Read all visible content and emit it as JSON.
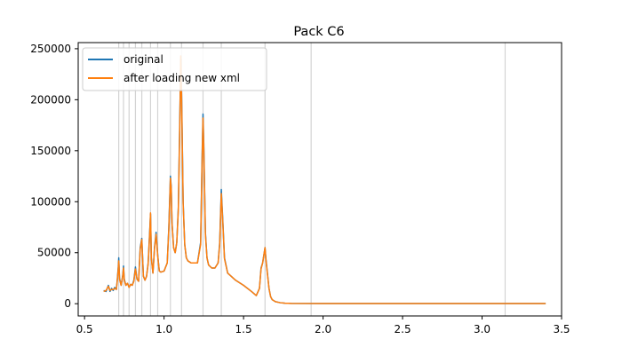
{
  "chart_data": {
    "type": "line",
    "title": "Pack C6",
    "xlabel": "",
    "ylabel": "",
    "xlim": [
      0.46,
      3.5
    ],
    "ylim": [
      -12000,
      256000
    ],
    "xticks": [
      0.5,
      1.0,
      1.5,
      2.0,
      2.5,
      3.0,
      3.5
    ],
    "xtick_labels": [
      "0.5",
      "1.0",
      "1.5",
      "2.0",
      "2.5",
      "3.0",
      "3.5"
    ],
    "yticks": [
      0,
      50000,
      100000,
      150000,
      200000,
      250000
    ],
    "ytick_labels": [
      "0",
      "50000",
      "100000",
      "150000",
      "200000",
      "250000"
    ],
    "grid": false,
    "legend": "upper-left",
    "vlines": [
      0.715,
      0.745,
      0.78,
      0.82,
      0.86,
      0.915,
      0.96,
      1.04,
      1.11,
      1.245,
      1.36,
      1.635,
      1.925,
      3.145
    ],
    "vline_color": "#d3d3d3",
    "series": [
      {
        "name": "original",
        "color": "#1f77b4",
        "x": [
          0.62,
          0.635,
          0.65,
          0.66,
          0.67,
          0.68,
          0.69,
          0.7,
          0.705,
          0.712,
          0.715,
          0.72,
          0.73,
          0.74,
          0.745,
          0.75,
          0.76,
          0.77,
          0.78,
          0.79,
          0.8,
          0.81,
          0.82,
          0.83,
          0.84,
          0.85,
          0.86,
          0.87,
          0.88,
          0.89,
          0.9,
          0.91,
          0.915,
          0.92,
          0.93,
          0.94,
          0.95,
          0.96,
          0.97,
          0.98,
          1.0,
          1.02,
          1.03,
          1.04,
          1.045,
          1.05,
          1.06,
          1.07,
          1.08,
          1.09,
          1.1,
          1.105,
          1.11,
          1.12,
          1.13,
          1.14,
          1.15,
          1.17,
          1.19,
          1.21,
          1.23,
          1.24,
          1.245,
          1.25,
          1.26,
          1.27,
          1.28,
          1.3,
          1.32,
          1.34,
          1.35,
          1.36,
          1.37,
          1.38,
          1.4,
          1.45,
          1.5,
          1.55,
          1.58,
          1.6,
          1.61,
          1.62,
          1.63,
          1.635,
          1.64,
          1.65,
          1.66,
          1.67,
          1.68,
          1.7,
          1.73,
          1.76,
          1.8,
          2.0,
          2.5,
          3.0,
          3.4
        ],
        "y": [
          13000,
          12000,
          18000,
          12000,
          15000,
          13000,
          16000,
          14000,
          22000,
          36000,
          45000,
          25000,
          18000,
          28000,
          37000,
          24000,
          18000,
          20000,
          16000,
          19000,
          18000,
          23000,
          36000,
          24000,
          22000,
          55000,
          64000,
          27000,
          23000,
          27000,
          40000,
          72000,
          88000,
          45000,
          30000,
          55000,
          70000,
          48000,
          32000,
          31000,
          32000,
          40000,
          75000,
          125000,
          115000,
          80000,
          55000,
          50000,
          60000,
          95000,
          190000,
          240000,
          210000,
          100000,
          58000,
          45000,
          42000,
          40000,
          40000,
          40000,
          60000,
          150000,
          186000,
          155000,
          70000,
          45000,
          38000,
          35000,
          35000,
          40000,
          60000,
          112000,
          80000,
          45000,
          30000,
          23000,
          18000,
          12000,
          8000,
          15000,
          35000,
          40000,
          50000,
          55000,
          45000,
          30000,
          15000,
          7000,
          4000,
          2000,
          1000,
          500,
          300,
          200,
          200,
          200,
          200
        ]
      },
      {
        "name": "after loading new xml",
        "color": "#ff7f0e",
        "x": [
          0.62,
          0.635,
          0.65,
          0.66,
          0.67,
          0.68,
          0.69,
          0.7,
          0.705,
          0.712,
          0.715,
          0.72,
          0.73,
          0.74,
          0.745,
          0.75,
          0.76,
          0.77,
          0.78,
          0.79,
          0.8,
          0.81,
          0.82,
          0.83,
          0.84,
          0.85,
          0.86,
          0.87,
          0.88,
          0.89,
          0.9,
          0.91,
          0.915,
          0.92,
          0.93,
          0.94,
          0.95,
          0.96,
          0.97,
          0.98,
          1.0,
          1.02,
          1.03,
          1.04,
          1.045,
          1.05,
          1.06,
          1.07,
          1.08,
          1.09,
          1.1,
          1.105,
          1.11,
          1.12,
          1.13,
          1.14,
          1.15,
          1.17,
          1.19,
          1.21,
          1.23,
          1.24,
          1.245,
          1.25,
          1.26,
          1.27,
          1.28,
          1.3,
          1.32,
          1.34,
          1.35,
          1.36,
          1.37,
          1.38,
          1.4,
          1.45,
          1.5,
          1.55,
          1.58,
          1.6,
          1.61,
          1.62,
          1.63,
          1.635,
          1.64,
          1.65,
          1.66,
          1.67,
          1.68,
          1.7,
          1.73,
          1.76,
          1.8,
          2.0,
          2.5,
          3.0,
          3.4
        ],
        "y": [
          12000,
          13000,
          17000,
          13000,
          14000,
          14000,
          15000,
          14000,
          21000,
          34000,
          42000,
          24000,
          18000,
          27000,
          35000,
          23000,
          18000,
          20000,
          16000,
          19000,
          18000,
          22000,
          34000,
          24000,
          22000,
          53000,
          63000,
          27000,
          23000,
          27000,
          39000,
          70000,
          89000,
          44000,
          30000,
          54000,
          68000,
          47000,
          32000,
          31000,
          32000,
          40000,
          73000,
          123000,
          113000,
          79000,
          55000,
          50000,
          60000,
          93000,
          185000,
          243000,
          205000,
          98000,
          58000,
          45000,
          42000,
          40000,
          40000,
          40000,
          58000,
          145000,
          182000,
          150000,
          68000,
          45000,
          38000,
          35000,
          35000,
          40000,
          58000,
          108000,
          78000,
          44000,
          30000,
          23000,
          18000,
          12000,
          8000,
          15000,
          34000,
          40000,
          50000,
          55000,
          44000,
          29000,
          15000,
          7000,
          4000,
          2000,
          1000,
          500,
          300,
          200,
          200,
          200,
          200
        ]
      }
    ]
  }
}
